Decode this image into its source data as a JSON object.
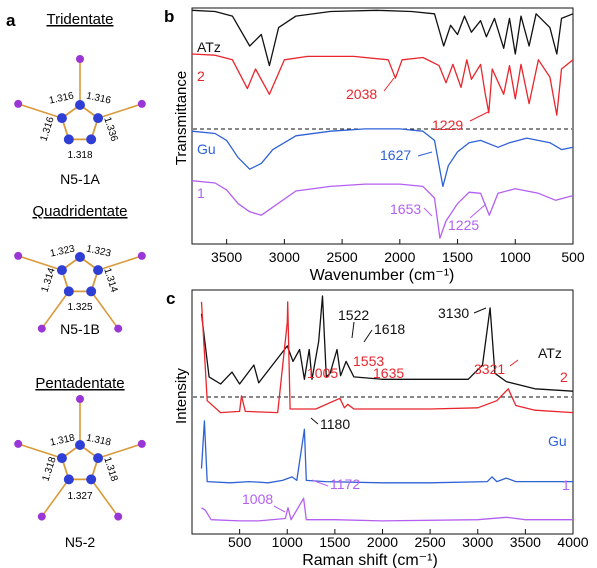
{
  "colors": {
    "black": "#111111",
    "red": "#e8262d",
    "blue": "#2f62d6",
    "purple": "#b45ff0",
    "bond": "#d99a3a",
    "nitrogen": "#2f3fd6",
    "ligand": "#9a35d6"
  },
  "panel_a": {
    "letter": "a",
    "structures": [
      {
        "id": "N5-1A",
        "header": "Tridentate",
        "name": "N5-1A",
        "bond_labels": [
          "1.316",
          "1.316",
          "1.336",
          "1.318",
          "1.316"
        ],
        "coordinated_atoms": 3
      },
      {
        "id": "N5-1B",
        "header": "Quadridentate",
        "name": "N5-1B",
        "bond_labels": [
          "1.323",
          "1.323",
          "1.314",
          "1.325",
          "1.314"
        ],
        "coordinated_atoms": 4
      },
      {
        "id": "N5-2",
        "header": "Pentadentate",
        "name": "N5-2",
        "bond_labels": [
          "1.318",
          "1.318",
          "1.318",
          "1.327",
          "1.318"
        ],
        "coordinated_atoms": 5
      }
    ]
  },
  "chart_data": [
    {
      "panel": "b",
      "type": "line",
      "xlabel": "Wavenumber (cm⁻¹)",
      "ylabel": "Transmittance",
      "xlim": [
        3800,
        500
      ],
      "x_ticks": [
        3500,
        3000,
        2500,
        2000,
        1500,
        1000,
        500
      ],
      "y_ticks_shown": false,
      "dashed_separator": true,
      "series": [
        {
          "name": "ATz",
          "color": "#111111",
          "points": [
            [
              3800,
              0.93
            ],
            [
              3600,
              0.92
            ],
            [
              3450,
              0.88
            ],
            [
              3300,
              0.62
            ],
            [
              3200,
              0.72
            ],
            [
              3130,
              0.45
            ],
            [
              3050,
              0.78
            ],
            [
              2900,
              0.88
            ],
            [
              2600,
              0.92
            ],
            [
              2200,
              0.93
            ],
            [
              1900,
              0.92
            ],
            [
              1700,
              0.9
            ],
            [
              1620,
              0.62
            ],
            [
              1560,
              0.8
            ],
            [
              1500,
              0.72
            ],
            [
              1440,
              0.88
            ],
            [
              1380,
              0.74
            ],
            [
              1300,
              0.84
            ],
            [
              1250,
              0.7
            ],
            [
              1180,
              0.86
            ],
            [
              1100,
              0.6
            ],
            [
              1050,
              0.86
            ],
            [
              1000,
              0.55
            ],
            [
              950,
              0.88
            ],
            [
              880,
              0.62
            ],
            [
              820,
              0.9
            ],
            [
              700,
              0.78
            ],
            [
              640,
              0.55
            ],
            [
              600,
              0.86
            ],
            [
              500,
              0.9
            ]
          ]
        },
        {
          "name": "2",
          "color": "#e8262d",
          "points": [
            [
              3800,
              0.55
            ],
            [
              3600,
              0.54
            ],
            [
              3450,
              0.5
            ],
            [
              3320,
              0.25
            ],
            [
              3250,
              0.42
            ],
            [
              3130,
              0.2
            ],
            [
              3000,
              0.5
            ],
            [
              2800,
              0.53
            ],
            [
              2400,
              0.53
            ],
            [
              2100,
              0.5
            ],
            [
              2038,
              0.34
            ],
            [
              1980,
              0.5
            ],
            [
              1800,
              0.52
            ],
            [
              1660,
              0.45
            ],
            [
              1600,
              0.3
            ],
            [
              1540,
              0.46
            ],
            [
              1470,
              0.26
            ],
            [
              1420,
              0.5
            ],
            [
              1380,
              0.33
            ],
            [
              1300,
              0.46
            ],
            [
              1260,
              0.2
            ],
            [
              1229,
              0.04
            ],
            [
              1200,
              0.42
            ],
            [
              1100,
              0.2
            ],
            [
              1050,
              0.45
            ],
            [
              1000,
              0.16
            ],
            [
              950,
              0.46
            ],
            [
              880,
              0.12
            ],
            [
              800,
              0.5
            ],
            [
              700,
              0.35
            ],
            [
              640,
              0.02
            ],
            [
              600,
              0.42
            ],
            [
              500,
              0.5
            ]
          ]
        },
        {
          "name": "Gu",
          "color": "#2f62d6",
          "points": [
            [
              3800,
              -0.12
            ],
            [
              3600,
              -0.14
            ],
            [
              3500,
              -0.2
            ],
            [
              3400,
              -0.35
            ],
            [
              3300,
              -0.45
            ],
            [
              3200,
              -0.4
            ],
            [
              3100,
              -0.28
            ],
            [
              2900,
              -0.16
            ],
            [
              2600,
              -0.12
            ],
            [
              2300,
              -0.1
            ],
            [
              2000,
              -0.1
            ],
            [
              1800,
              -0.12
            ],
            [
              1700,
              -0.2
            ],
            [
              1627,
              -0.6
            ],
            [
              1580,
              -0.42
            ],
            [
              1500,
              -0.3
            ],
            [
              1400,
              -0.22
            ],
            [
              1300,
              -0.2
            ],
            [
              1150,
              -0.26
            ],
            [
              1050,
              -0.22
            ],
            [
              900,
              -0.18
            ],
            [
              700,
              -0.22
            ],
            [
              600,
              -0.28
            ],
            [
              500,
              -0.26
            ]
          ]
        },
        {
          "name": "1",
          "color": "#b45ff0",
          "points": [
            [
              3800,
              -0.55
            ],
            [
              3600,
              -0.57
            ],
            [
              3500,
              -0.63
            ],
            [
              3400,
              -0.75
            ],
            [
              3300,
              -0.82
            ],
            [
              3200,
              -0.85
            ],
            [
              3100,
              -0.78
            ],
            [
              2900,
              -0.64
            ],
            [
              2600,
              -0.6
            ],
            [
              2300,
              -0.58
            ],
            [
              2000,
              -0.58
            ],
            [
              1800,
              -0.6
            ],
            [
              1700,
              -0.7
            ],
            [
              1653,
              -1.05
            ],
            [
              1600,
              -0.9
            ],
            [
              1500,
              -0.75
            ],
            [
              1400,
              -0.65
            ],
            [
              1300,
              -0.66
            ],
            [
              1225,
              -0.85
            ],
            [
              1150,
              -0.66
            ],
            [
              1000,
              -0.62
            ],
            [
              800,
              -0.66
            ],
            [
              650,
              -0.72
            ],
            [
              500,
              -0.68
            ]
          ]
        }
      ],
      "series_labels": [
        "ATz",
        "2",
        "Gu",
        "1"
      ],
      "annotations": [
        {
          "text": "2038",
          "color": "#e8262d"
        },
        {
          "text": "1229",
          "color": "#e8262d"
        },
        {
          "text": "1627",
          "color": "#2f62d6"
        },
        {
          "text": "1653",
          "color": "#b45ff0"
        },
        {
          "text": "1225",
          "color": "#b45ff0"
        }
      ]
    },
    {
      "panel": "c",
      "type": "line",
      "xlabel": "Raman shift (cm⁻¹)",
      "ylabel": "Intensity",
      "xlim": [
        0,
        4000
      ],
      "x_ticks": [
        500,
        1000,
        1500,
        2000,
        2500,
        3000,
        3500,
        4000
      ],
      "y_ticks_shown": false,
      "dashed_separator": true,
      "series": [
        {
          "name": "ATz",
          "color": "#111111",
          "points": [
            [
              100,
              0.85
            ],
            [
              180,
              0.32
            ],
            [
              300,
              0.26
            ],
            [
              420,
              0.36
            ],
            [
              500,
              0.26
            ],
            [
              650,
              0.42
            ],
            [
              700,
              0.27
            ],
            [
              1000,
              0.58
            ],
            [
              1060,
              0.45
            ],
            [
              1130,
              0.55
            ],
            [
              1180,
              0.3
            ],
            [
              1230,
              0.55
            ],
            [
              1260,
              0.3
            ],
            [
              1330,
              0.62
            ],
            [
              1370,
              1.0
            ],
            [
              1410,
              0.32
            ],
            [
              1450,
              0.35
            ],
            [
              1522,
              0.55
            ],
            [
              1560,
              0.33
            ],
            [
              1618,
              0.45
            ],
            [
              1700,
              0.32
            ],
            [
              2000,
              0.3
            ],
            [
              2500,
              0.3
            ],
            [
              2900,
              0.3
            ],
            [
              3050,
              0.42
            ],
            [
              3130,
              0.9
            ],
            [
              3180,
              0.35
            ],
            [
              3300,
              0.28
            ],
            [
              3600,
              0.22
            ],
            [
              4000,
              0.2
            ]
          ]
        },
        {
          "name": "2",
          "color": "#e8262d",
          "points": [
            [
              100,
              0.95
            ],
            [
              160,
              0.12
            ],
            [
              300,
              0.02
            ],
            [
              500,
              0.03
            ],
            [
              520,
              0.16
            ],
            [
              560,
              0.03
            ],
            [
              900,
              0.02
            ],
            [
              1000,
              0.78
            ],
            [
              1005,
              0.95
            ],
            [
              1030,
              0.05
            ],
            [
              1300,
              0.05
            ],
            [
              1553,
              0.14
            ],
            [
              1600,
              0.06
            ],
            [
              1635,
              0.09
            ],
            [
              1700,
              0.05
            ],
            [
              2500,
              0.05
            ],
            [
              3000,
              0.06
            ],
            [
              3200,
              0.12
            ],
            [
              3321,
              0.22
            ],
            [
              3400,
              0.08
            ],
            [
              3600,
              0.04
            ],
            [
              4000,
              0.02
            ]
          ]
        },
        {
          "name": "Gu",
          "color": "#2f62d6",
          "points": [
            [
              100,
              -0.45
            ],
            [
              130,
              -0.05
            ],
            [
              160,
              -0.56
            ],
            [
              400,
              -0.57
            ],
            [
              600,
              -0.56
            ],
            [
              800,
              -0.57
            ],
            [
              950,
              -0.55
            ],
            [
              1050,
              -0.52
            ],
            [
              1100,
              -0.55
            ],
            [
              1180,
              -0.12
            ],
            [
              1200,
              -0.55
            ],
            [
              1400,
              -0.56
            ],
            [
              2000,
              -0.57
            ],
            [
              2500,
              -0.57
            ],
            [
              3100,
              -0.56
            ],
            [
              3150,
              -0.52
            ],
            [
              3200,
              -0.56
            ],
            [
              3300,
              -0.53
            ],
            [
              3400,
              -0.56
            ],
            [
              4000,
              -0.56
            ]
          ]
        },
        {
          "name": "1",
          "color": "#b45ff0",
          "points": [
            [
              100,
              -0.78
            ],
            [
              140,
              -0.8
            ],
            [
              200,
              -0.88
            ],
            [
              500,
              -0.89
            ],
            [
              700,
              -0.89
            ],
            [
              980,
              -0.87
            ],
            [
              1008,
              -0.78
            ],
            [
              1040,
              -0.88
            ],
            [
              1172,
              -0.7
            ],
            [
              1200,
              -0.88
            ],
            [
              1500,
              -0.88
            ],
            [
              2000,
              -0.89
            ],
            [
              3000,
              -0.88
            ],
            [
              3300,
              -0.86
            ],
            [
              3500,
              -0.88
            ],
            [
              4000,
              -0.88
            ]
          ]
        }
      ],
      "series_labels": [
        "ATz",
        "2",
        "Gu",
        "1"
      ],
      "annotations": [
        {
          "text": "1522",
          "color": "#111111"
        },
        {
          "text": "1618",
          "color": "#111111"
        },
        {
          "text": "3130",
          "color": "#111111"
        },
        {
          "text": "1005",
          "color": "#e8262d"
        },
        {
          "text": "1553",
          "color": "#e8262d"
        },
        {
          "text": "1635",
          "color": "#e8262d"
        },
        {
          "text": "3321",
          "color": "#e8262d"
        },
        {
          "text": "1180",
          "color": "#111111"
        },
        {
          "text": "1008",
          "color": "#b45ff0"
        },
        {
          "text": "1172",
          "color": "#b45ff0"
        }
      ]
    }
  ]
}
